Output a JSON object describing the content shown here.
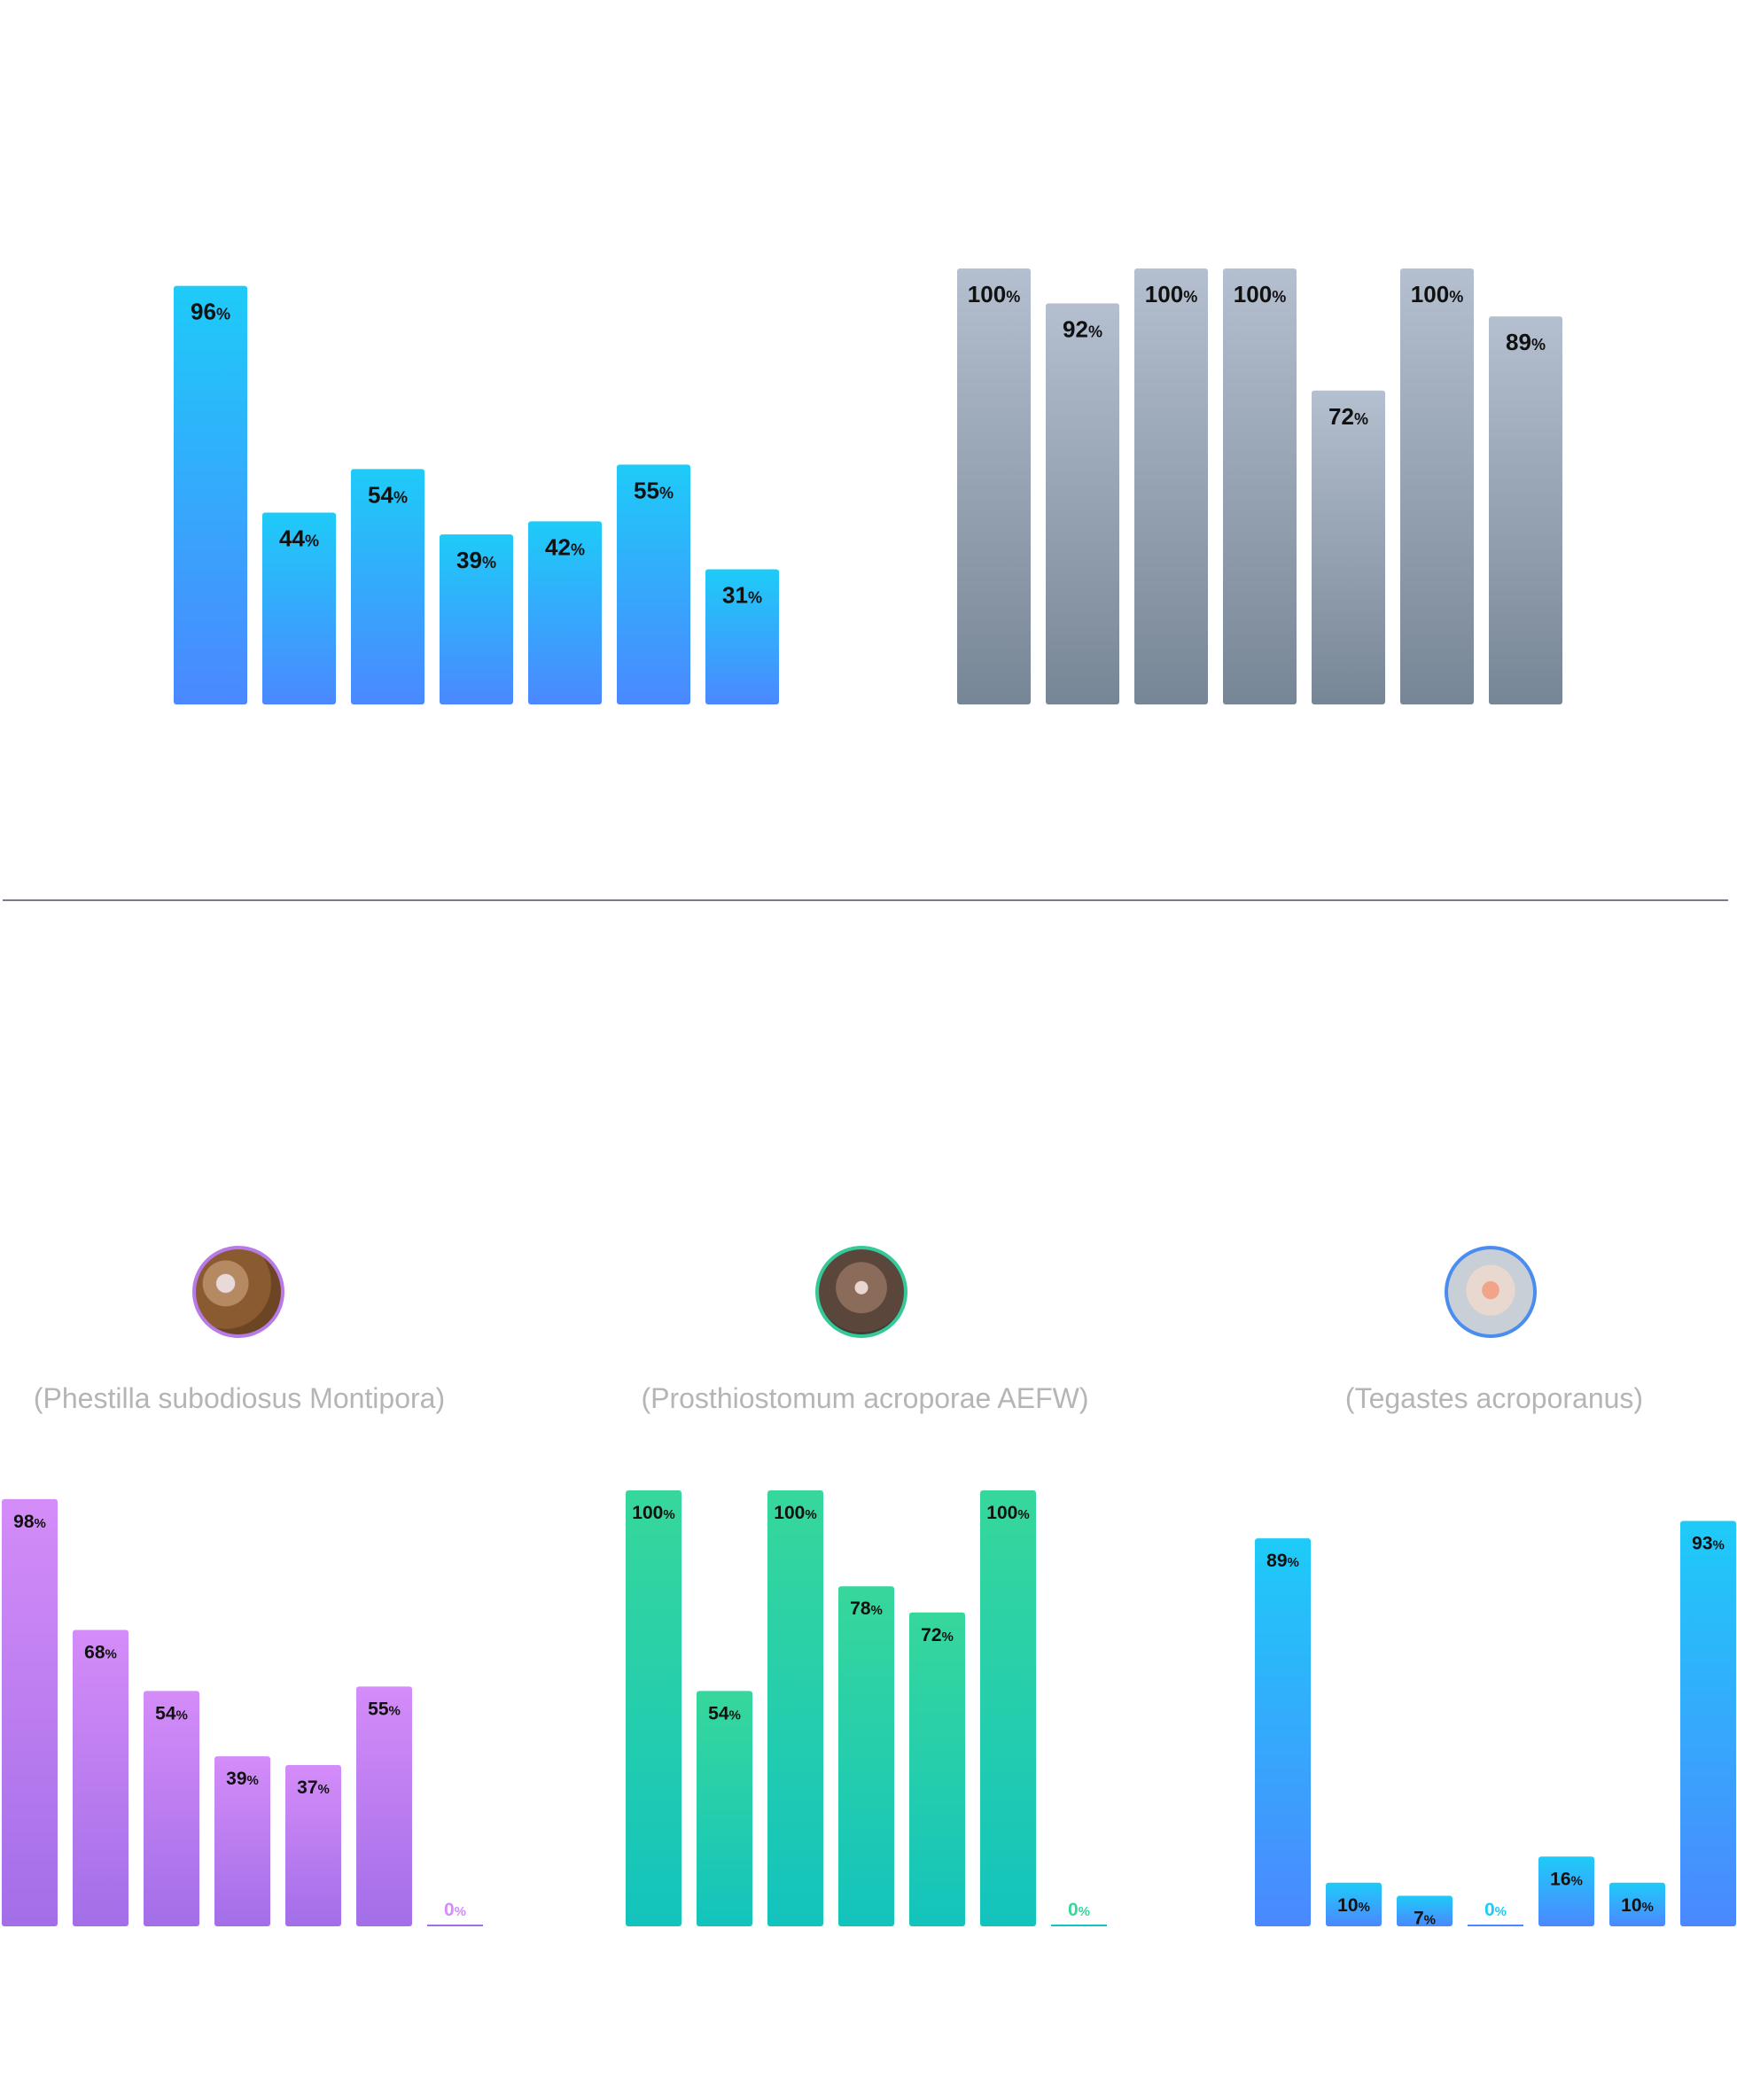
{
  "colors": {
    "blue_top": "#1ecbf8",
    "blue_bottom": "#4b88ff",
    "gray_top": "#b4bfcf",
    "gray_bottom": "#778696",
    "purple_top": "#d48cf8",
    "purple_bottom": "#a36ee8",
    "green_top": "#37d79b",
    "green_bottom": "#13c4bd",
    "divider": "#7a7a8c",
    "caption": "#b5b5b5"
  },
  "panels": [
    {
      "caption": "(Phestilla subodiosus Montipora)",
      "avatar_icon": "nudibranch-photo-icon"
    },
    {
      "caption": "(Prosthiostomum acroporae AEFW)",
      "avatar_icon": "flatworm-photo-icon"
    },
    {
      "caption": "(Tegastes acroporanus)",
      "avatar_icon": "copepod-photo-icon"
    }
  ],
  "chart_data": [
    {
      "type": "bar",
      "label_suffix": "%",
      "ylim": [
        0,
        100
      ],
      "values": [
        96,
        44,
        54,
        39,
        42,
        55,
        31
      ],
      "gradient": [
        "blue_top",
        "blue_bottom"
      ]
    },
    {
      "type": "bar",
      "label_suffix": "%",
      "ylim": [
        0,
        100
      ],
      "values": [
        100,
        92,
        100,
        100,
        72,
        100,
        89
      ],
      "gradient": [
        "gray_top",
        "gray_bottom"
      ]
    },
    {
      "type": "bar",
      "label_suffix": "%",
      "ylim": [
        0,
        100
      ],
      "values": [
        98,
        68,
        54,
        39,
        37,
        55,
        0
      ],
      "gradient": [
        "purple_top",
        "purple_bottom"
      ]
    },
    {
      "type": "bar",
      "label_suffix": "%",
      "ylim": [
        0,
        100
      ],
      "values": [
        100,
        54,
        100,
        78,
        72,
        100,
        0
      ],
      "gradient": [
        "green_top",
        "green_bottom"
      ]
    },
    {
      "type": "bar",
      "label_suffix": "%",
      "ylim": [
        0,
        100
      ],
      "values": [
        89,
        10,
        7,
        0,
        16,
        10,
        93
      ],
      "gradient": [
        "blue_top",
        "blue_bottom"
      ]
    }
  ]
}
